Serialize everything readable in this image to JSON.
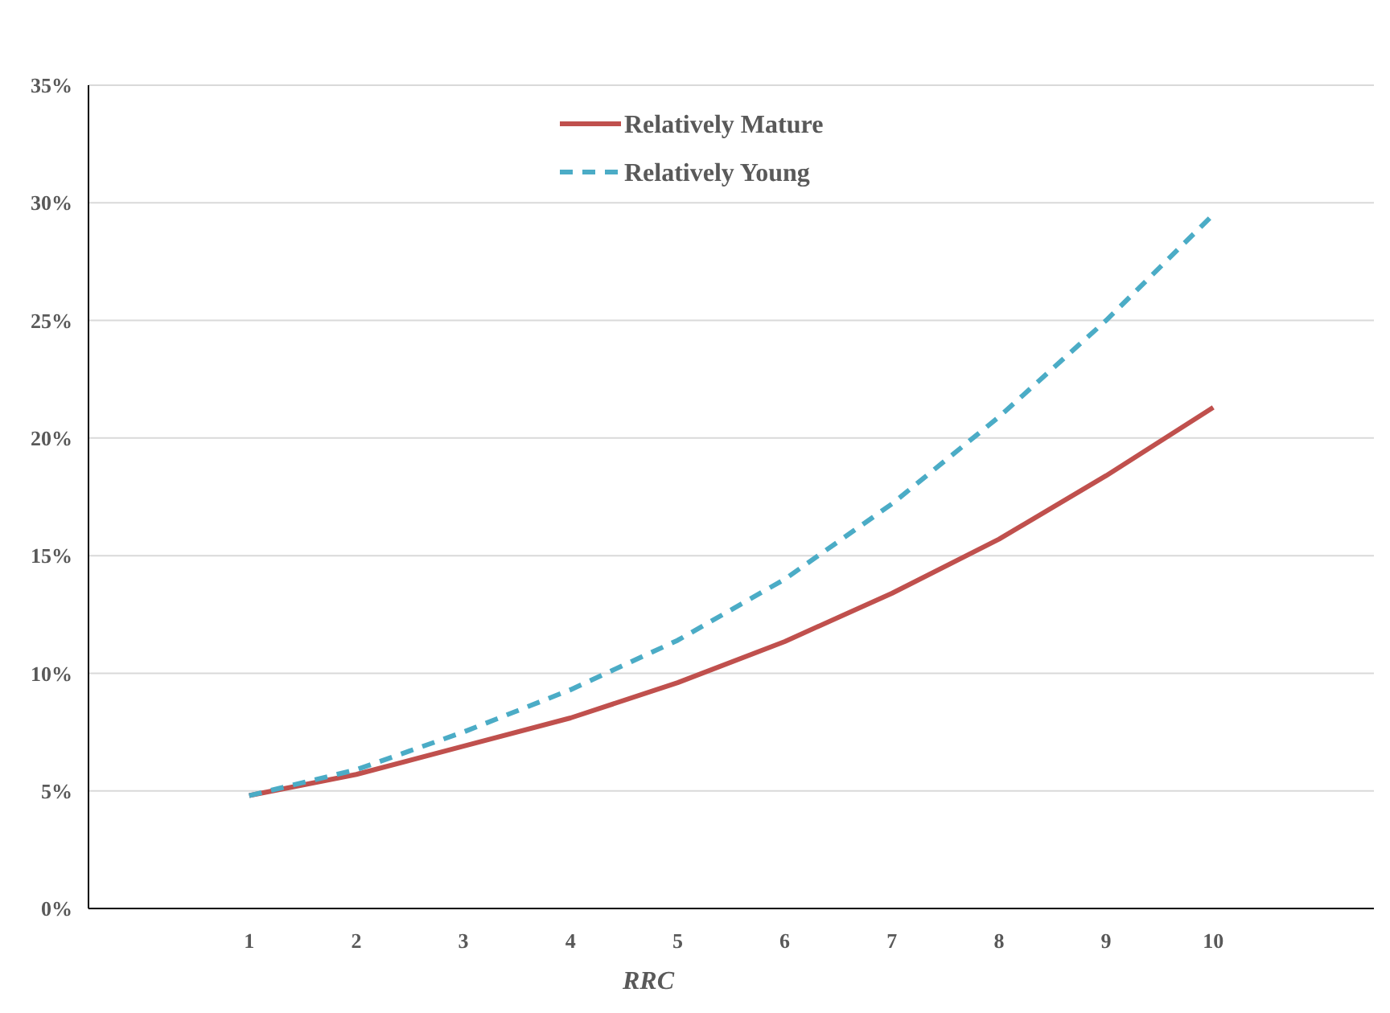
{
  "chart_data": {
    "type": "line",
    "xlabel": "RRC",
    "x": [
      1,
      2,
      3,
      4,
      5,
      6,
      7,
      8,
      9,
      10
    ],
    "xlim": [
      -0.5,
      11.5
    ],
    "xticks": [
      1,
      2,
      3,
      4,
      5,
      6,
      7,
      8,
      9,
      10
    ],
    "ylim": [
      0,
      35
    ],
    "yticks": [
      {
        "value": 0,
        "label": "0%"
      },
      {
        "value": 5,
        "label": "5%"
      },
      {
        "value": 10,
        "label": "10%"
      },
      {
        "value": 15,
        "label": "15%"
      },
      {
        "value": 20,
        "label": "20%"
      },
      {
        "value": 25,
        "label": "25%"
      },
      {
        "value": 30,
        "label": "30%"
      },
      {
        "value": 35,
        "label": "35%"
      }
    ],
    "grid": "y",
    "legend": "top",
    "marker": "none",
    "series": [
      {
        "name": "Relatively Mature",
        "color": "#c0504d",
        "line_style": "solid",
        "values": [
          4.8,
          5.7,
          6.9,
          8.1,
          9.6,
          11.35,
          13.4,
          15.7,
          18.4,
          21.3
        ]
      },
      {
        "name": "Relatively Young",
        "color": "#4bacc6",
        "line_style": "dashed",
        "values": [
          4.8,
          5.9,
          7.5,
          9.3,
          11.4,
          14.0,
          17.2,
          20.9,
          25.0,
          29.5
        ]
      }
    ]
  }
}
